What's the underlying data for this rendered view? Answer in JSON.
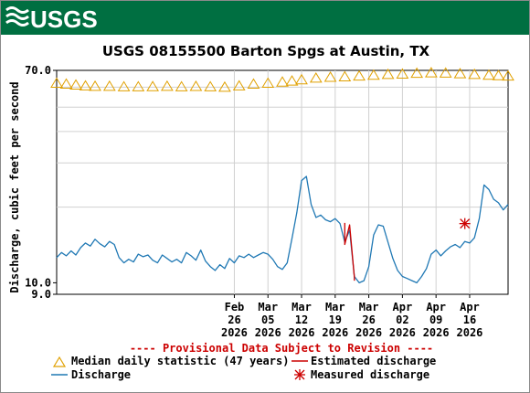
{
  "logo": {
    "text": "USGS"
  },
  "chart_data": {
    "type": "line",
    "title": "USGS 08155500 Barton Spgs at Austin, TX",
    "ylabel": "Discharge, cubic feet per second",
    "xlabel": "",
    "y_scale": "log",
    "ylim": [
      9.0,
      70.0
    ],
    "y_tick_labels": [
      "70.0",
      "10.0",
      "9.0"
    ],
    "y_ticks": [
      70.0,
      10.0,
      9.0
    ],
    "xlim": [
      "2026-01-20",
      "2026-04-24"
    ],
    "grid": true,
    "x_ticks": [
      {
        "date": "2026-02-26",
        "line1": "Feb",
        "line2": "26",
        "line3": "2026"
      },
      {
        "date": "2026-03-05",
        "line1": "Mar",
        "line2": "05",
        "line3": "2026"
      },
      {
        "date": "2026-03-12",
        "line1": "Mar",
        "line2": "12",
        "line3": "2026"
      },
      {
        "date": "2026-03-19",
        "line1": "Mar",
        "line2": "19",
        "line3": "2026"
      },
      {
        "date": "2026-03-26",
        "line1": "Mar",
        "line2": "26",
        "line3": "2026"
      },
      {
        "date": "2026-04-02",
        "line1": "Apr",
        "line2": "02",
        "line3": "2026"
      },
      {
        "date": "2026-04-09",
        "line1": "Apr",
        "line2": "09",
        "line3": "2026"
      },
      {
        "date": "2026-04-16",
        "line1": "Apr",
        "line2": "16",
        "line3": "2026"
      }
    ],
    "provisional_note": "---- Provisional Data Subject to Revision ----",
    "legend": {
      "placement": "bottom",
      "median": "Median daily statistic (47 years)",
      "estimated": "Estimated discharge",
      "discharge": "Discharge",
      "measured": "Measured discharge"
    },
    "colors": {
      "median": "#e0a000",
      "discharge": "#1f78b4",
      "estimated": "#cc0000",
      "measured": "#cc0000",
      "note": "#cc0000",
      "banner": "#006f41"
    },
    "median_series": [
      [
        "2026-01-20",
        62.5
      ],
      [
        "2026-01-22",
        62.0
      ],
      [
        "2026-01-24",
        61.5
      ],
      [
        "2026-01-26",
        61.0
      ],
      [
        "2026-01-28",
        60.8
      ],
      [
        "2026-01-31",
        60.8
      ],
      [
        "2026-02-03",
        60.5
      ],
      [
        "2026-02-06",
        60.5
      ],
      [
        "2026-02-09",
        60.6
      ],
      [
        "2026-02-12",
        60.8
      ],
      [
        "2026-02-15",
        60.5
      ],
      [
        "2026-02-18",
        60.7
      ],
      [
        "2026-02-21",
        60.5
      ],
      [
        "2026-02-24",
        60.3
      ],
      [
        "2026-02-27",
        61.0
      ],
      [
        "2026-03-02",
        62.0
      ],
      [
        "2026-03-05",
        62.5
      ],
      [
        "2026-03-08",
        63.2
      ],
      [
        "2026-03-10",
        63.8
      ],
      [
        "2026-03-12",
        64.5
      ],
      [
        "2026-03-15",
        65.5
      ],
      [
        "2026-03-18",
        66.0
      ],
      [
        "2026-03-21",
        66.3
      ],
      [
        "2026-03-24",
        66.8
      ],
      [
        "2026-03-27",
        67.3
      ],
      [
        "2026-03-30",
        67.8
      ],
      [
        "2026-04-02",
        68.0
      ],
      [
        "2026-04-05",
        68.5
      ],
      [
        "2026-04-08",
        68.8
      ],
      [
        "2026-04-11",
        68.6
      ],
      [
        "2026-04-14",
        68.2
      ],
      [
        "2026-04-17",
        67.8
      ],
      [
        "2026-04-20",
        67.3
      ],
      [
        "2026-04-22",
        67.0
      ],
      [
        "2026-04-24",
        66.8
      ]
    ],
    "discharge_series": [
      [
        "2026-01-20",
        12.6
      ],
      [
        "2026-01-21",
        13.2
      ],
      [
        "2026-01-22",
        12.8
      ],
      [
        "2026-01-23",
        13.4
      ],
      [
        "2026-01-24",
        12.9
      ],
      [
        "2026-01-25",
        13.8
      ],
      [
        "2026-01-26",
        14.4
      ],
      [
        "2026-01-27",
        14.0
      ],
      [
        "2026-01-28",
        14.9
      ],
      [
        "2026-01-29",
        14.3
      ],
      [
        "2026-01-30",
        13.9
      ],
      [
        "2026-01-31",
        14.6
      ],
      [
        "2026-02-01",
        14.2
      ],
      [
        "2026-02-02",
        12.6
      ],
      [
        "2026-02-03",
        12.0
      ],
      [
        "2026-02-04",
        12.4
      ],
      [
        "2026-02-05",
        12.1
      ],
      [
        "2026-02-06",
        13.0
      ],
      [
        "2026-02-07",
        12.7
      ],
      [
        "2026-02-08",
        12.9
      ],
      [
        "2026-02-09",
        12.3
      ],
      [
        "2026-02-10",
        12.0
      ],
      [
        "2026-02-11",
        12.9
      ],
      [
        "2026-02-12",
        12.5
      ],
      [
        "2026-02-13",
        12.1
      ],
      [
        "2026-02-14",
        12.4
      ],
      [
        "2026-02-15",
        12.0
      ],
      [
        "2026-02-16",
        13.2
      ],
      [
        "2026-02-17",
        12.8
      ],
      [
        "2026-02-18",
        12.3
      ],
      [
        "2026-02-19",
        13.5
      ],
      [
        "2026-02-20",
        12.2
      ],
      [
        "2026-02-21",
        11.6
      ],
      [
        "2026-02-22",
        11.2
      ],
      [
        "2026-02-23",
        11.8
      ],
      [
        "2026-02-24",
        11.4
      ],
      [
        "2026-02-25",
        12.5
      ],
      [
        "2026-02-26",
        12.0
      ],
      [
        "2026-02-27",
        12.8
      ],
      [
        "2026-02-28",
        12.6
      ],
      [
        "2026-03-01",
        13.0
      ],
      [
        "2026-03-02",
        12.6
      ],
      [
        "2026-03-03",
        12.9
      ],
      [
        "2026-03-04",
        13.2
      ],
      [
        "2026-03-05",
        13.0
      ],
      [
        "2026-03-06",
        12.4
      ],
      [
        "2026-03-07",
        11.6
      ],
      [
        "2026-03-08",
        11.3
      ],
      [
        "2026-03-09",
        12.0
      ],
      [
        "2026-03-10",
        15.0
      ],
      [
        "2026-03-11",
        19.0
      ],
      [
        "2026-03-12",
        25.5
      ],
      [
        "2026-03-13",
        26.5
      ],
      [
        "2026-03-14",
        20.5
      ],
      [
        "2026-03-15",
        18.2
      ],
      [
        "2026-03-16",
        18.6
      ],
      [
        "2026-03-17",
        17.8
      ],
      [
        "2026-03-18",
        17.5
      ],
      [
        "2026-03-19",
        18.0
      ],
      [
        "2026-03-20",
        17.2
      ],
      [
        "2026-03-21",
        14.5
      ],
      [
        "2026-03-22",
        16.2
      ],
      [
        "2026-03-23",
        10.6
      ],
      [
        "2026-03-24",
        10.0
      ],
      [
        "2026-03-25",
        10.2
      ],
      [
        "2026-03-26",
        11.6
      ],
      [
        "2026-03-27",
        15.5
      ],
      [
        "2026-03-28",
        17.0
      ],
      [
        "2026-03-29",
        16.8
      ],
      [
        "2026-03-30",
        14.5
      ],
      [
        "2026-03-31",
        12.5
      ],
      [
        "2026-04-01",
        11.2
      ],
      [
        "2026-04-02",
        10.6
      ],
      [
        "2026-04-03",
        10.4
      ],
      [
        "2026-04-04",
        10.2
      ],
      [
        "2026-04-05",
        10.0
      ],
      [
        "2026-04-06",
        10.6
      ],
      [
        "2026-04-07",
        11.4
      ],
      [
        "2026-04-08",
        13.0
      ],
      [
        "2026-04-09",
        13.5
      ],
      [
        "2026-04-10",
        12.8
      ],
      [
        "2026-04-11",
        13.4
      ],
      [
        "2026-04-12",
        13.9
      ],
      [
        "2026-04-13",
        14.2
      ],
      [
        "2026-04-14",
        13.8
      ],
      [
        "2026-04-15",
        14.6
      ],
      [
        "2026-04-16",
        14.4
      ],
      [
        "2026-04-17",
        15.1
      ],
      [
        "2026-04-18",
        18.0
      ],
      [
        "2026-04-19",
        24.5
      ],
      [
        "2026-04-20",
        23.5
      ],
      [
        "2026-04-21",
        21.5
      ],
      [
        "2026-04-22",
        20.8
      ],
      [
        "2026-04-23",
        19.5
      ],
      [
        "2026-04-24",
        20.5
      ]
    ],
    "estimated_series": [
      [
        "2026-03-21",
        17.3
      ],
      [
        "2026-03-21",
        14.2
      ],
      [
        "2026-03-22",
        17.0
      ],
      [
        "2026-03-23",
        10.5
      ],
      [
        "2026-03-23",
        10.2
      ]
    ],
    "measured_points": [
      [
        "2026-04-15",
        17.2
      ]
    ]
  }
}
